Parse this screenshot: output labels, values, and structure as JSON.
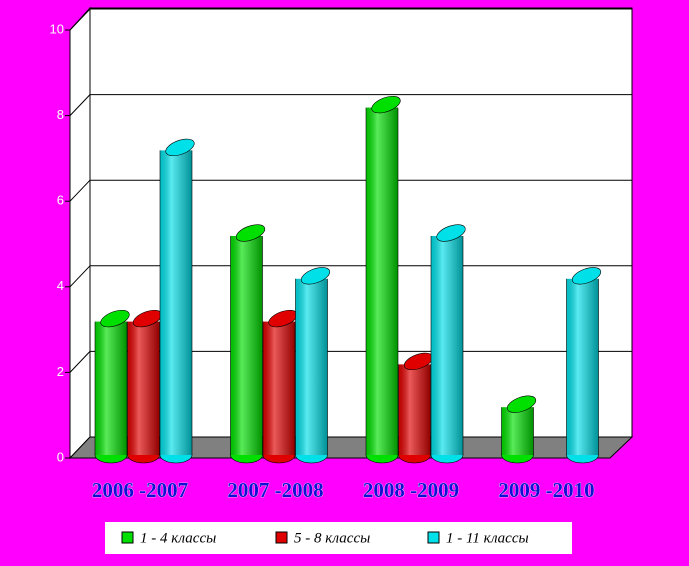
{
  "chart_data": {
    "type": "bar3d",
    "categories": [
      "2006 -2007",
      "2007 -2008",
      "2008 -2009",
      "2009 -2010"
    ],
    "series": [
      {
        "name": "1 - 4 классы",
        "color": "#00e000",
        "values": [
          3,
          5,
          8,
          1
        ]
      },
      {
        "name": "5 - 8 классы",
        "color": "#e00000",
        "values": [
          3,
          3,
          2,
          null
        ]
      },
      {
        "name": "1 - 11 классы",
        "color": "#00e0e8",
        "values": [
          7,
          4,
          5,
          4
        ]
      }
    ],
    "ylim": [
      0,
      10
    ],
    "yticks": [
      0,
      2,
      4,
      6,
      8,
      10
    ],
    "grid": true
  }
}
